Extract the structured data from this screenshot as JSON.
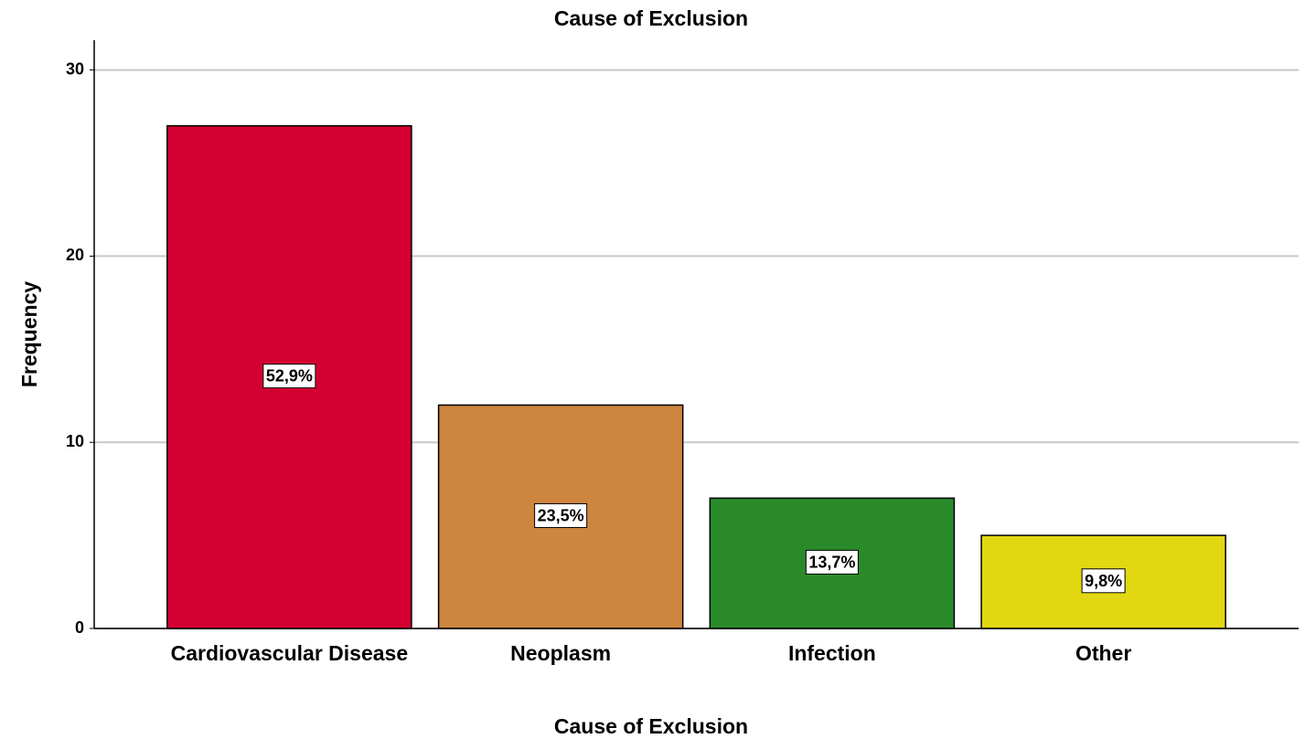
{
  "chart_data": {
    "type": "bar",
    "title": "Cause of Exclusion",
    "x_label": "Cause of Exclusion",
    "y_label": "Frequency",
    "categories": [
      "Cardiovascular Disease",
      "Neoplasm",
      "Infection",
      "Other"
    ],
    "values": [
      27,
      12,
      7,
      5
    ],
    "colors": [
      "#d50032",
      "#cd853f",
      "#2a8a2a",
      "#e2d812"
    ],
    "percentages": {
      "values": [
        52.9,
        23.5,
        13.7,
        9.8
      ],
      "value_labels": [
        "52,9%",
        "23,5%",
        "13,7%",
        "9,8%"
      ]
    },
    "ylim": [
      0,
      31.6
    ],
    "yticks": [
      0,
      10,
      20,
      30
    ],
    "grid": true
  }
}
